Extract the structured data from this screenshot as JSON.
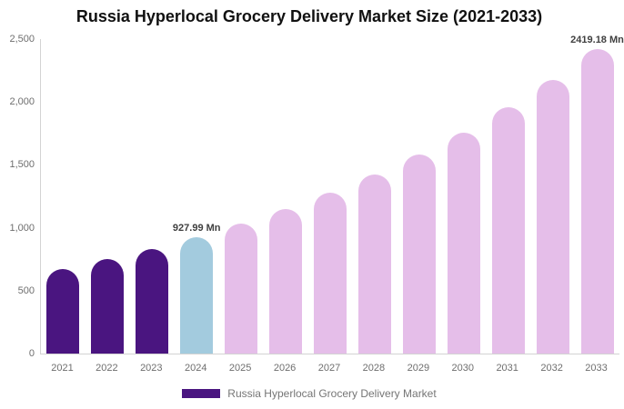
{
  "page": {
    "background": "#ffffff"
  },
  "chart_data": {
    "type": "bar",
    "title": "Russia Hyperlocal Grocery Delivery Market Size (2021-2033)",
    "unit": "Mn",
    "categories": [
      "2021",
      "2022",
      "2023",
      "2024",
      "2025",
      "2026",
      "2027",
      "2028",
      "2029",
      "2030",
      "2031",
      "2032",
      "2033"
    ],
    "series": [
      {
        "name": "Russia Hyperlocal Grocery Delivery Market",
        "values": [
          674,
          750,
          834,
          927.99,
          1032,
          1148,
          1277,
          1421,
          1580,
          1758,
          1955,
          2175,
          2419.18
        ]
      }
    ],
    "point_labels": [
      null,
      null,
      null,
      "927.99 Mn",
      null,
      null,
      null,
      null,
      null,
      null,
      null,
      null,
      "2419.18 Mn"
    ],
    "bar_segments": [
      "historical",
      "historical",
      "historical",
      "current",
      "forecast",
      "forecast",
      "forecast",
      "forecast",
      "forecast",
      "forecast",
      "forecast",
      "forecast",
      "forecast"
    ],
    "segment_colors": {
      "historical": "#4A1580",
      "current": "#A3CBDE",
      "forecast": "#E5BEE9"
    },
    "ylim": [
      0,
      2500
    ],
    "yticks": [
      {
        "value": 0,
        "label": "0"
      },
      {
        "value": 500,
        "label": "500"
      },
      {
        "value": 1000,
        "label": "1,000"
      },
      {
        "value": 1500,
        "label": "1,500"
      },
      {
        "value": 2000,
        "label": "2,000"
      },
      {
        "value": 2500,
        "label": "2,500"
      }
    ],
    "xlabel": "",
    "ylabel": "",
    "grid": false,
    "axis_color": "#d3d3d3",
    "tick_text_color": "#6e6e6e",
    "data_label_color": "#3f3f3f",
    "legend": {
      "position": "bottom",
      "label": "Russia Hyperlocal Grocery Delivery Market",
      "swatch_color": "#4A1580"
    }
  }
}
